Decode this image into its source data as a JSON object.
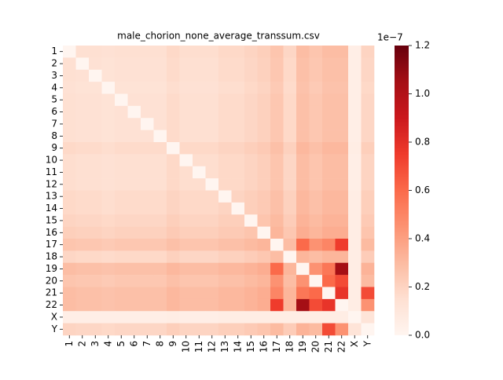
{
  "chart_data": {
    "type": "heatmap",
    "title": "male_chorion_none_average_transsum.csv",
    "categories": [
      "1",
      "2",
      "3",
      "4",
      "5",
      "6",
      "7",
      "8",
      "9",
      "10",
      "11",
      "12",
      "13",
      "14",
      "15",
      "16",
      "17",
      "18",
      "19",
      "20",
      "21",
      "22",
      "X",
      "Y"
    ],
    "colormap": "Reds",
    "clim": [
      0,
      1.2
    ],
    "colorbar_ticks": [
      {
        "value": 0,
        "label": "0.0"
      },
      {
        "value": 0.2,
        "label": "0.2"
      },
      {
        "value": 0.4,
        "label": "0.4"
      },
      {
        "value": 0.6,
        "label": "0.6"
      },
      {
        "value": 0.8,
        "label": "0.8"
      },
      {
        "value": 1.0,
        "label": "1.0"
      },
      {
        "value": 1.2,
        "label": "1.2"
      }
    ],
    "colorbar_offset_label": "1e−7",
    "values": [
      [
        0,
        0.15,
        0.15,
        0.14,
        0.15,
        0.15,
        0.15,
        0.15,
        0.18,
        0.16,
        0.16,
        0.16,
        0.18,
        0.18,
        0.2,
        0.22,
        0.26,
        0.19,
        0.29,
        0.26,
        0.29,
        0.29,
        0.05,
        0.2
      ],
      [
        0.15,
        0,
        0.14,
        0.13,
        0.14,
        0.14,
        0.14,
        0.14,
        0.17,
        0.15,
        0.15,
        0.15,
        0.17,
        0.17,
        0.19,
        0.21,
        0.25,
        0.18,
        0.28,
        0.25,
        0.28,
        0.28,
        0.05,
        0.19
      ],
      [
        0.15,
        0.14,
        0,
        0.13,
        0.14,
        0.14,
        0.14,
        0.14,
        0.17,
        0.15,
        0.15,
        0.15,
        0.17,
        0.17,
        0.19,
        0.21,
        0.25,
        0.18,
        0.28,
        0.25,
        0.28,
        0.28,
        0.05,
        0.19
      ],
      [
        0.14,
        0.13,
        0.13,
        0,
        0.13,
        0.13,
        0.13,
        0.13,
        0.16,
        0.14,
        0.14,
        0.14,
        0.16,
        0.16,
        0.18,
        0.2,
        0.24,
        0.17,
        0.27,
        0.24,
        0.27,
        0.27,
        0.05,
        0.18
      ],
      [
        0.15,
        0.14,
        0.14,
        0.13,
        0,
        0.14,
        0.14,
        0.14,
        0.17,
        0.15,
        0.15,
        0.15,
        0.17,
        0.17,
        0.19,
        0.21,
        0.25,
        0.18,
        0.28,
        0.25,
        0.28,
        0.28,
        0.05,
        0.19
      ],
      [
        0.15,
        0.14,
        0.14,
        0.13,
        0.14,
        0,
        0.14,
        0.14,
        0.17,
        0.15,
        0.15,
        0.15,
        0.17,
        0.17,
        0.19,
        0.21,
        0.25,
        0.18,
        0.28,
        0.25,
        0.28,
        0.28,
        0.05,
        0.19
      ],
      [
        0.15,
        0.14,
        0.14,
        0.13,
        0.14,
        0.14,
        0,
        0.14,
        0.17,
        0.15,
        0.15,
        0.15,
        0.17,
        0.17,
        0.19,
        0.21,
        0.25,
        0.18,
        0.28,
        0.25,
        0.28,
        0.28,
        0.05,
        0.19
      ],
      [
        0.15,
        0.14,
        0.14,
        0.13,
        0.14,
        0.14,
        0.14,
        0,
        0.17,
        0.15,
        0.15,
        0.15,
        0.17,
        0.17,
        0.19,
        0.21,
        0.25,
        0.18,
        0.28,
        0.25,
        0.28,
        0.28,
        0.05,
        0.19
      ],
      [
        0.18,
        0.17,
        0.17,
        0.16,
        0.17,
        0.17,
        0.17,
        0.17,
        0,
        0.18,
        0.18,
        0.18,
        0.2,
        0.2,
        0.22,
        0.24,
        0.28,
        0.21,
        0.31,
        0.28,
        0.31,
        0.31,
        0.06,
        0.22
      ],
      [
        0.16,
        0.15,
        0.15,
        0.14,
        0.15,
        0.15,
        0.15,
        0.15,
        0.18,
        0,
        0.16,
        0.16,
        0.18,
        0.18,
        0.2,
        0.22,
        0.26,
        0.19,
        0.29,
        0.26,
        0.29,
        0.29,
        0.05,
        0.2
      ],
      [
        0.16,
        0.15,
        0.15,
        0.14,
        0.15,
        0.15,
        0.15,
        0.15,
        0.18,
        0.16,
        0,
        0.16,
        0.18,
        0.18,
        0.2,
        0.22,
        0.26,
        0.19,
        0.29,
        0.26,
        0.29,
        0.29,
        0.05,
        0.2
      ],
      [
        0.16,
        0.15,
        0.15,
        0.14,
        0.15,
        0.15,
        0.15,
        0.15,
        0.18,
        0.16,
        0.16,
        0,
        0.18,
        0.18,
        0.2,
        0.22,
        0.26,
        0.19,
        0.29,
        0.26,
        0.29,
        0.29,
        0.05,
        0.2
      ],
      [
        0.18,
        0.17,
        0.17,
        0.16,
        0.17,
        0.17,
        0.17,
        0.17,
        0.2,
        0.18,
        0.18,
        0.18,
        0,
        0.2,
        0.22,
        0.24,
        0.28,
        0.21,
        0.31,
        0.28,
        0.31,
        0.31,
        0.06,
        0.22
      ],
      [
        0.18,
        0.17,
        0.17,
        0.16,
        0.17,
        0.17,
        0.17,
        0.17,
        0.2,
        0.18,
        0.18,
        0.18,
        0.2,
        0,
        0.22,
        0.24,
        0.28,
        0.21,
        0.31,
        0.28,
        0.31,
        0.31,
        0.06,
        0.22
      ],
      [
        0.2,
        0.19,
        0.19,
        0.18,
        0.19,
        0.19,
        0.19,
        0.19,
        0.22,
        0.2,
        0.2,
        0.2,
        0.22,
        0.22,
        0,
        0.26,
        0.3,
        0.23,
        0.33,
        0.3,
        0.33,
        0.33,
        0.06,
        0.24
      ],
      [
        0.22,
        0.21,
        0.21,
        0.2,
        0.21,
        0.21,
        0.21,
        0.21,
        0.24,
        0.22,
        0.22,
        0.22,
        0.24,
        0.24,
        0.26,
        0,
        0.32,
        0.25,
        0.35,
        0.32,
        0.35,
        0.35,
        0.06,
        0.26
      ],
      [
        0.26,
        0.25,
        0.25,
        0.24,
        0.25,
        0.25,
        0.25,
        0.25,
        0.28,
        0.26,
        0.26,
        0.26,
        0.28,
        0.28,
        0.3,
        0.32,
        0,
        0.29,
        0.6,
        0.45,
        0.5,
        0.75,
        0.06,
        0.3
      ],
      [
        0.19,
        0.18,
        0.18,
        0.17,
        0.18,
        0.18,
        0.18,
        0.18,
        0.21,
        0.19,
        0.19,
        0.19,
        0.21,
        0.21,
        0.23,
        0.25,
        0.29,
        0,
        0.32,
        0.29,
        0.32,
        0.32,
        0.06,
        0.23
      ],
      [
        0.29,
        0.28,
        0.28,
        0.27,
        0.28,
        0.28,
        0.28,
        0.28,
        0.31,
        0.29,
        0.29,
        0.29,
        0.31,
        0.31,
        0.33,
        0.35,
        0.6,
        0.32,
        0,
        0.45,
        0.55,
        1.05,
        0.06,
        0.33
      ],
      [
        0.26,
        0.25,
        0.25,
        0.24,
        0.25,
        0.25,
        0.25,
        0.25,
        0.28,
        0.26,
        0.26,
        0.26,
        0.28,
        0.28,
        0.3,
        0.32,
        0.45,
        0.29,
        0.45,
        0,
        0.6,
        0.7,
        0.06,
        0.3
      ],
      [
        0.29,
        0.28,
        0.28,
        0.27,
        0.28,
        0.28,
        0.28,
        0.28,
        0.31,
        0.29,
        0.29,
        0.29,
        0.31,
        0.31,
        0.33,
        0.35,
        0.5,
        0.32,
        0.55,
        0.6,
        0,
        0.78,
        0.06,
        0.7
      ],
      [
        0.29,
        0.28,
        0.28,
        0.27,
        0.28,
        0.28,
        0.28,
        0.28,
        0.31,
        0.29,
        0.29,
        0.29,
        0.31,
        0.31,
        0.33,
        0.35,
        0.75,
        0.32,
        1.05,
        0.7,
        0.78,
        0,
        0.06,
        0.45
      ],
      [
        0.05,
        0.05,
        0.05,
        0.05,
        0.05,
        0.05,
        0.05,
        0.05,
        0.06,
        0.05,
        0.05,
        0.05,
        0.06,
        0.06,
        0.06,
        0.06,
        0.06,
        0.06,
        0.06,
        0.06,
        0.06,
        0.06,
        0,
        0.12
      ],
      [
        0.2,
        0.19,
        0.19,
        0.18,
        0.19,
        0.19,
        0.19,
        0.19,
        0.22,
        0.2,
        0.2,
        0.2,
        0.22,
        0.22,
        0.24,
        0.26,
        0.3,
        0.23,
        0.33,
        0.3,
        0.7,
        0.45,
        0.12,
        0
      ]
    ]
  }
}
